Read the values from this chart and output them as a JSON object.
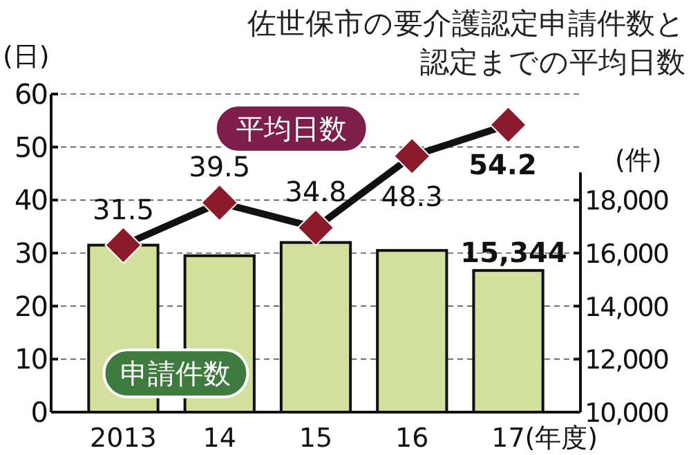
{
  "chart_data": {
    "type": "bar",
    "title": "佐世保市の要介護認定申請件数と認定までの平均日数",
    "ylabel": "(日)",
    "y2label": "(件)",
    "xlabel": "(年度)",
    "categories": [
      "2013",
      "14",
      "15",
      "16",
      "17"
    ],
    "series": [
      {
        "name": "申請件数",
        "axis": "y2",
        "color": "#d3df9c",
        "values": [
          16300,
          15900,
          16400,
          16100,
          15344
        ],
        "value_labels": [
          null,
          null,
          null,
          null,
          "15,344"
        ]
      },
      {
        "name": "平均日数",
        "type": "line",
        "axis": "y",
        "color": "#8b1a2b",
        "values": [
          31.5,
          39.5,
          34.8,
          48.3,
          54.2
        ],
        "value_labels": [
          "31.5",
          "39.5",
          "34.8",
          "48.3",
          "54.2"
        ],
        "marker": "diamond"
      }
    ],
    "ylim": [
      0,
      60
    ],
    "yticks": [
      0,
      10,
      20,
      30,
      40,
      50,
      60
    ],
    "y2lim": [
      10000,
      22000
    ],
    "y2ticks": [
      {
        "value": 10000,
        "label": "10,000"
      },
      {
        "value": 12000,
        "label": "12,000"
      },
      {
        "value": 14000,
        "label": "14,000"
      },
      {
        "value": 16000,
        "label": "16,000"
      },
      {
        "value": 18000,
        "label": "18,000"
      }
    ],
    "grid": "y"
  }
}
